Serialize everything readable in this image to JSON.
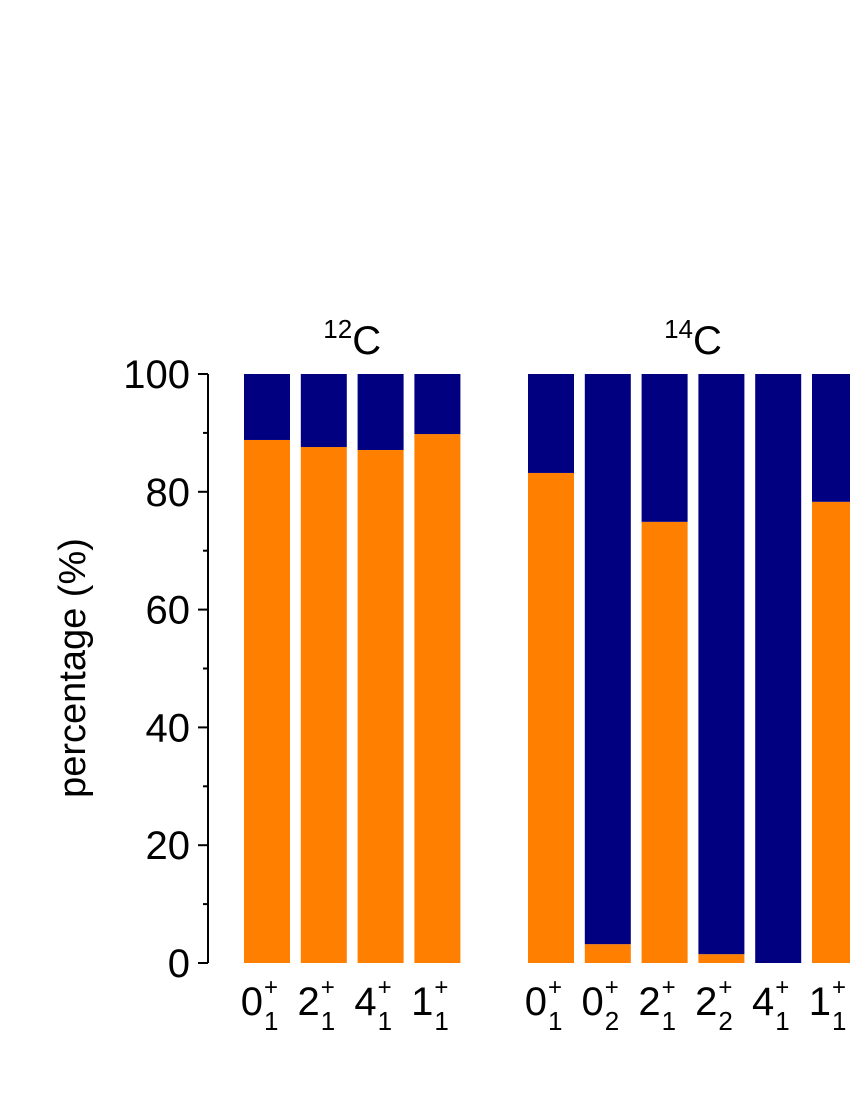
{
  "chart_data": {
    "type": "stacked_bar",
    "ylabel": "percentage (%)",
    "ylim": [
      0,
      100
    ],
    "yticks": [
      0,
      20,
      40,
      60,
      80,
      100
    ],
    "yminor_ticks": [
      10,
      30,
      50,
      70,
      90
    ],
    "groups": [
      {
        "title": {
          "mass": "12",
          "element": "C"
        },
        "categories": [
          {
            "j": "0",
            "parity": "+",
            "n": "1"
          },
          {
            "j": "2",
            "parity": "+",
            "n": "1"
          },
          {
            "j": "4",
            "parity": "+",
            "n": "1"
          },
          {
            "j": "1",
            "parity": "+",
            "n": "1"
          }
        ],
        "series": [
          {
            "color": "#ff7f00",
            "values": [
              88.8,
              87.6,
              87.1,
              89.8
            ]
          },
          {
            "color": "#000080",
            "values": [
              11.2,
              12.4,
              12.9,
              10.2
            ]
          }
        ]
      },
      {
        "title": {
          "mass": "14",
          "element": "C"
        },
        "categories": [
          {
            "j": "0",
            "parity": "+",
            "n": "1"
          },
          {
            "j": "0",
            "parity": "+",
            "n": "2"
          },
          {
            "j": "2",
            "parity": "+",
            "n": "1"
          },
          {
            "j": "2",
            "parity": "+",
            "n": "2"
          },
          {
            "j": "4",
            "parity": "+",
            "n": "1"
          },
          {
            "j": "1",
            "parity": "+",
            "n": "1"
          }
        ],
        "series": [
          {
            "color": "#ff7f00",
            "values": [
              83.2,
              3.2,
              74.9,
              1.5,
              0,
              78.3
            ]
          },
          {
            "color": "#000080",
            "values": [
              16.8,
              96.8,
              25.1,
              98.5,
              100,
              21.7
            ]
          }
        ]
      }
    ]
  }
}
